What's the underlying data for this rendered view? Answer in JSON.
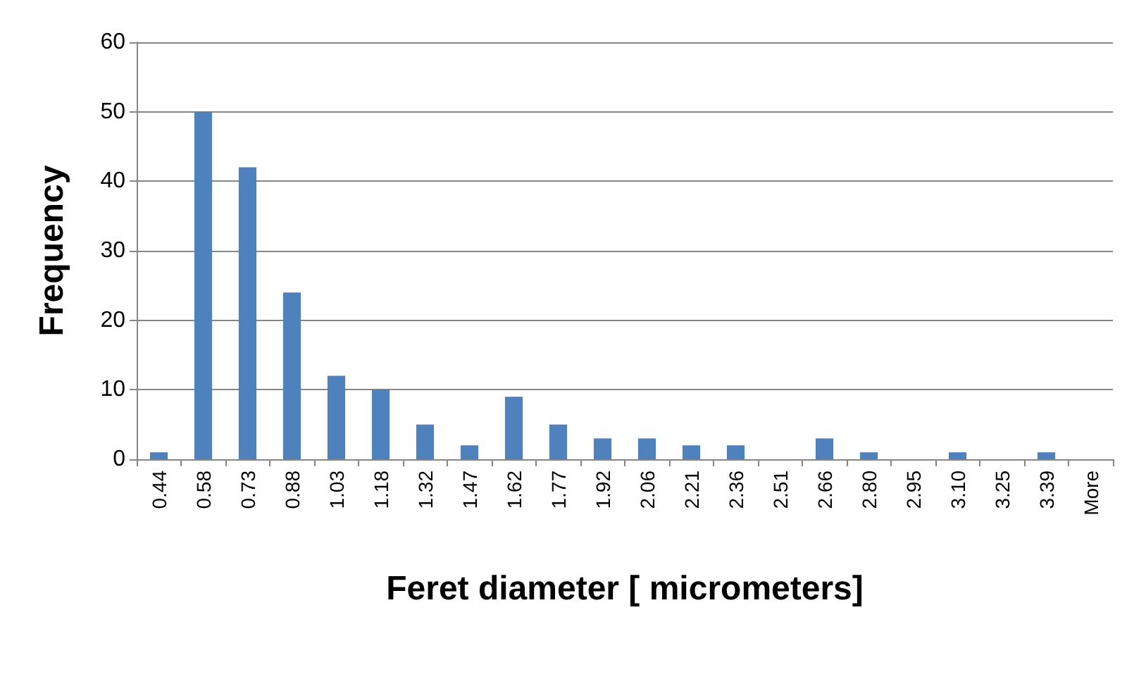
{
  "chart_data": {
    "type": "bar",
    "categories": [
      "0.44",
      "0.58",
      "0.73",
      "0.88",
      "1.03",
      "1.18",
      "1.32",
      "1.47",
      "1.62",
      "1.77",
      "1.92",
      "2.06",
      "2.21",
      "2.36",
      "2.51",
      "2.66",
      "2.80",
      "2.95",
      "3.10",
      "3.25",
      "3.39",
      "More"
    ],
    "values": [
      1,
      50,
      42,
      24,
      12,
      10,
      5,
      2,
      9,
      5,
      3,
      3,
      2,
      2,
      0,
      3,
      1,
      0,
      1,
      0,
      1,
      0
    ],
    "color": "#4f81bd",
    "xlabel": "Feret diameter [ micrometers]",
    "ylabel": "Frequency",
    "ylim": [
      0,
      60
    ],
    "yticks": [
      0,
      10,
      20,
      30,
      40,
      50,
      60
    ],
    "grid": "y"
  }
}
